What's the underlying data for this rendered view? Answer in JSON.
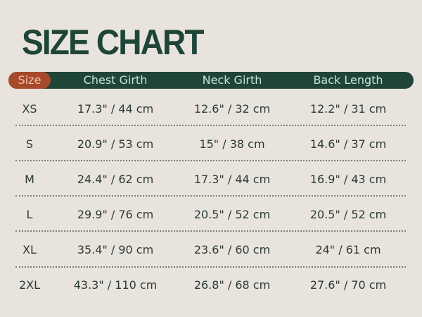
{
  "title": "SIZE CHART",
  "colors": {
    "background": "#e8e4dd",
    "header_bar": "#1f4538",
    "size_pill": "#a64a2a",
    "title": "#1f4538"
  },
  "headers": [
    "Size",
    "Chest Girth",
    "Neck Girth",
    "Back Length"
  ],
  "rows": [
    [
      "XS",
      "17.3\" / 44 cm",
      "12.6\" / 32 cm",
      "12.2\" / 31 cm"
    ],
    [
      "S",
      "20.9\" / 53 cm",
      "15\" / 38 cm",
      "14.6\" / 37 cm"
    ],
    [
      "M",
      "24.4\" / 62 cm",
      "17.3\" / 44 cm",
      "16.9\" / 43 cm"
    ],
    [
      "L",
      "29.9\" / 76 cm",
      "20.5\" / 52 cm",
      "20.5\" / 52 cm"
    ],
    [
      "XL",
      "35.4\" / 90 cm",
      "23.6\" / 60 cm",
      "24\" / 61 cm"
    ],
    [
      "2XL",
      "43.3\" / 110 cm",
      "26.8\" / 68 cm",
      "27.6\" / 70 cm"
    ]
  ]
}
